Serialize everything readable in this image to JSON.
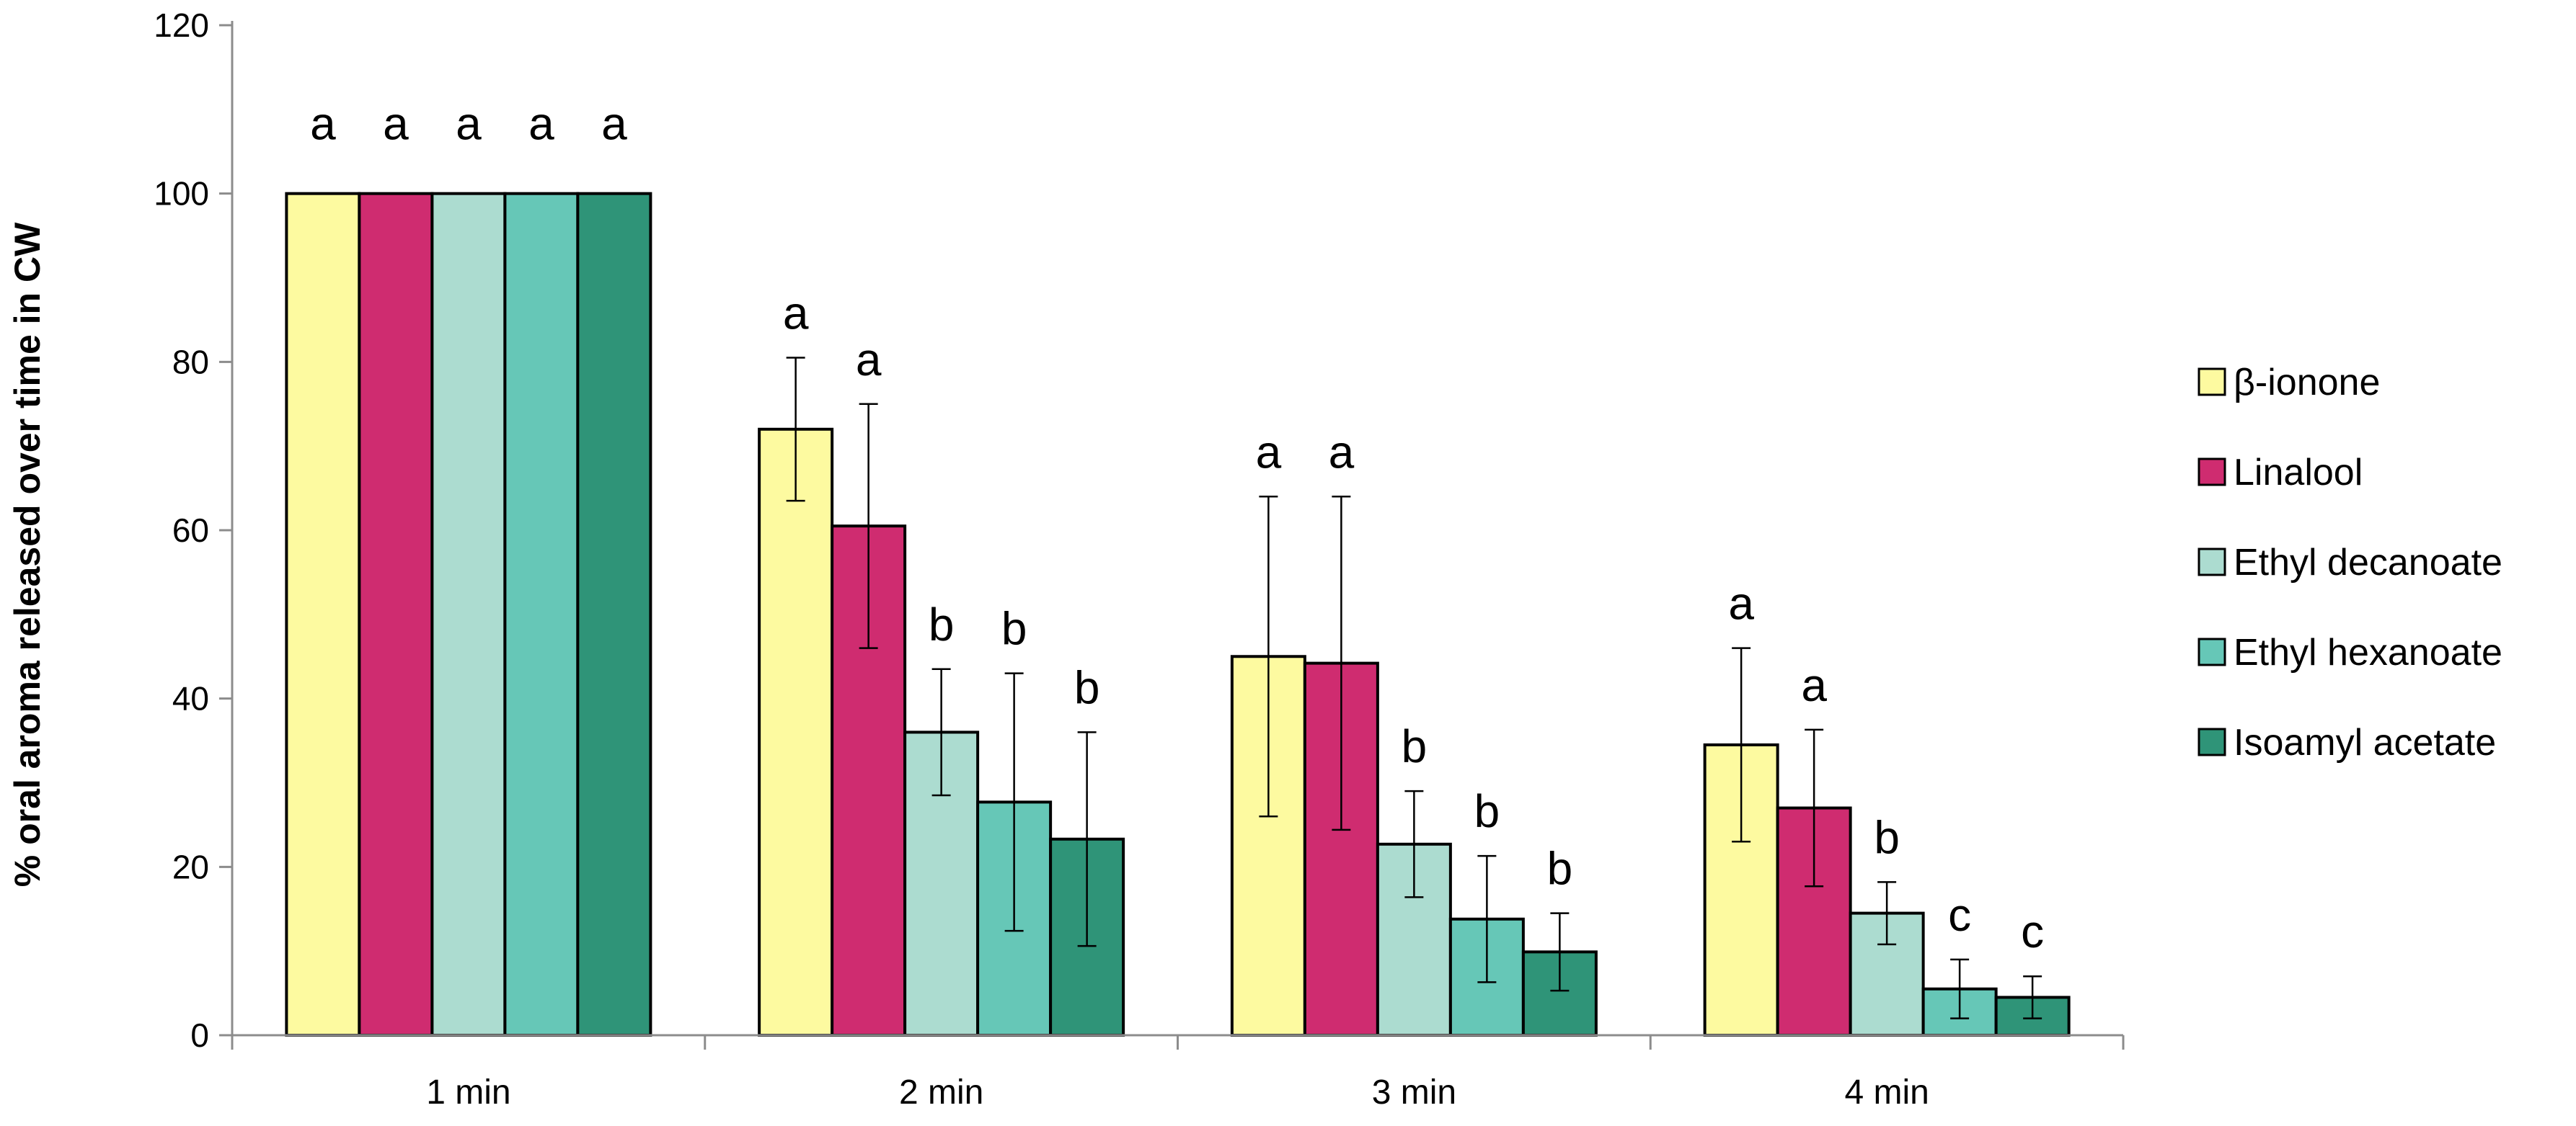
{
  "chart_data": {
    "type": "bar",
    "title": "",
    "xlabel": "",
    "ylabel": "% oral aroma released over time in CW",
    "ylim": [
      0,
      120
    ],
    "yticks": [
      0,
      20,
      40,
      60,
      80,
      100,
      120
    ],
    "categories": [
      "1 min",
      "2 min",
      "3 min",
      "4 min"
    ],
    "legend_position": "right",
    "series": [
      {
        "name": "β-ionone",
        "color": "#fdfaa0",
        "values": [
          100,
          72,
          45,
          34.5
        ],
        "errors": [
          0,
          8.5,
          19,
          11.5
        ],
        "letters": [
          "a",
          "a",
          "a",
          "a"
        ]
      },
      {
        "name": "Linalool",
        "color": "#cf2c70",
        "values": [
          100,
          60.5,
          44.2,
          27
        ],
        "errors": [
          0,
          14.5,
          19.8,
          9.3
        ],
        "letters": [
          "a",
          "a",
          "a",
          "a"
        ]
      },
      {
        "name": "Ethyl decanoate",
        "color": "#acdcd0",
        "values": [
          100,
          36,
          22.7,
          14.5
        ],
        "errors": [
          0,
          7.5,
          6.3,
          3.7
        ],
        "letters": [
          "a",
          "b",
          "b",
          "b"
        ]
      },
      {
        "name": "Ethyl hexanoate",
        "color": "#66c7b7",
        "values": [
          100,
          27.7,
          13.8,
          5.5
        ],
        "errors": [
          0,
          15.3,
          7.5,
          3.5
        ],
        "letters": [
          "a",
          "b",
          "b",
          "c"
        ]
      },
      {
        "name": "Isoamyl acetate",
        "color": "#2f9478",
        "values": [
          100,
          23.3,
          9.9,
          4.5
        ],
        "errors": [
          0,
          12.7,
          4.6,
          2.5
        ],
        "letters": [
          "a",
          "b",
          "b",
          "c"
        ]
      }
    ]
  }
}
